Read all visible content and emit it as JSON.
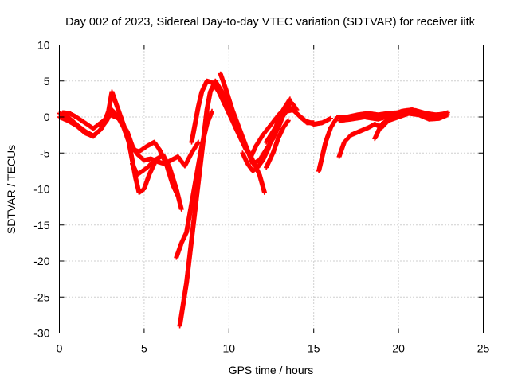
{
  "chart_data": {
    "type": "scatter",
    "title": "Day 002 of 2023, Sidereal Day-to-day VTEC variation (SDTVAR) for receiver iitk",
    "xlabel": "GPS time / hours",
    "ylabel": "SDTVAR / TECUs",
    "xlim": [
      0,
      25
    ],
    "ylim": [
      -30,
      10
    ],
    "xticks": [
      0,
      5,
      10,
      15,
      20,
      25
    ],
    "yticks": [
      -30,
      -25,
      -20,
      -15,
      -10,
      -5,
      0,
      5,
      10
    ],
    "grid": true,
    "marker": "+",
    "color": "#ff0000",
    "series": [
      {
        "name": "s1",
        "points": [
          [
            0,
            0.5
          ],
          [
            0.4,
            0.2
          ],
          [
            0.8,
            -0.6
          ],
          [
            1.2,
            -1.4
          ],
          [
            1.6,
            -2.1
          ],
          [
            2.0,
            -2.6
          ],
          [
            2.4,
            -1.8
          ],
          [
            2.8,
            -0.5
          ],
          [
            3.1,
            1.0
          ],
          [
            3.4,
            0.2
          ],
          [
            3.8,
            -1.5
          ],
          [
            4.1,
            -3.5
          ],
          [
            4.3,
            -6.0
          ],
          [
            4.5,
            -8.5
          ],
          [
            4.7,
            -10.5
          ],
          [
            5.0,
            -10.0
          ],
          [
            5.3,
            -8.0
          ],
          [
            5.7,
            -6.0
          ],
          [
            6.1,
            -5.2
          ],
          [
            6.5,
            -7.0
          ],
          [
            6.9,
            -10.0
          ],
          [
            7.2,
            -12.8
          ]
        ]
      },
      {
        "name": "s2",
        "points": [
          [
            0,
            0.0
          ],
          [
            0.5,
            -0.5
          ],
          [
            1.0,
            -1.2
          ],
          [
            1.5,
            -2.2
          ],
          [
            2.0,
            -2.7
          ],
          [
            2.5,
            -1.6
          ],
          [
            2.9,
            0.8
          ],
          [
            3.1,
            3.5
          ],
          [
            3.4,
            1.5
          ],
          [
            3.7,
            -0.5
          ],
          [
            4.0,
            -2.5
          ],
          [
            4.3,
            -4.5
          ],
          [
            4.7,
            -4.8
          ],
          [
            5.2,
            -4.0
          ],
          [
            5.6,
            -3.5
          ],
          [
            5.9,
            -4.5
          ],
          [
            6.3,
            -6.5
          ],
          [
            6.7,
            -9.5
          ],
          [
            7.0,
            -11.0
          ]
        ]
      },
      {
        "name": "s3",
        "points": [
          [
            0.2,
            0.6
          ],
          [
            0.6,
            0.5
          ],
          [
            1.0,
            0.0
          ],
          [
            1.5,
            -0.8
          ],
          [
            2.0,
            -1.6
          ],
          [
            2.5,
            -0.7
          ],
          [
            3.0,
            0.3
          ],
          [
            3.5,
            -0.2
          ],
          [
            4.0,
            -2.0
          ],
          [
            4.3,
            -4.0
          ],
          [
            4.6,
            -5.2
          ],
          [
            5.0,
            -6.0
          ],
          [
            5.4,
            -5.8
          ],
          [
            5.8,
            -6.2
          ],
          [
            6.2,
            -6.5
          ],
          [
            6.6,
            -6.0
          ],
          [
            7.0,
            -5.5
          ],
          [
            7.4,
            -6.8
          ],
          [
            7.8,
            -5.0
          ],
          [
            8.2,
            -3.5
          ]
        ]
      },
      {
        "name": "s4",
        "points": [
          [
            4.3,
            -6.5
          ],
          [
            4.6,
            -8.0
          ],
          [
            4.9,
            -7.5
          ],
          [
            5.2,
            -7.0
          ],
          [
            5.6,
            -6.0
          ],
          [
            6.0,
            -5.5
          ]
        ]
      },
      {
        "name": "s5",
        "points": [
          [
            6.9,
            -19.5
          ],
          [
            7.2,
            -17.5
          ],
          [
            7.5,
            -16.0
          ],
          [
            7.8,
            -12.0
          ],
          [
            8.1,
            -8.0
          ],
          [
            8.4,
            -4.0
          ],
          [
            8.7,
            -1.0
          ],
          [
            9.0,
            0.8
          ]
        ]
      },
      {
        "name": "s6",
        "points": [
          [
            7.1,
            -29.0
          ],
          [
            7.3,
            -26.0
          ],
          [
            7.5,
            -23.0
          ],
          [
            7.7,
            -19.0
          ],
          [
            7.9,
            -15.0
          ],
          [
            8.1,
            -11.0
          ],
          [
            8.3,
            -7.0
          ],
          [
            8.5,
            -3.0
          ],
          [
            8.7,
            1.0
          ],
          [
            8.9,
            3.5
          ],
          [
            9.2,
            5.0
          ],
          [
            9.6,
            3.5
          ],
          [
            10.0,
            1.0
          ],
          [
            10.4,
            -1.5
          ],
          [
            10.8,
            -3.5
          ],
          [
            11.2,
            -5.0
          ],
          [
            11.5,
            -6.5
          ],
          [
            11.8,
            -8.0
          ],
          [
            12.1,
            -10.5
          ]
        ]
      },
      {
        "name": "s7",
        "points": [
          [
            7.8,
            -3.5
          ],
          [
            8.0,
            -1.0
          ],
          [
            8.2,
            1.5
          ],
          [
            8.4,
            3.5
          ],
          [
            8.7,
            5.0
          ],
          [
            9.0,
            4.8
          ],
          [
            9.4,
            3.5
          ],
          [
            9.8,
            1.5
          ],
          [
            10.2,
            -0.5
          ],
          [
            10.6,
            -2.5
          ],
          [
            11.0,
            -4.5
          ],
          [
            11.3,
            -5.5
          ],
          [
            11.6,
            -4.0
          ],
          [
            12.0,
            -2.5
          ],
          [
            12.5,
            -1.0
          ],
          [
            13.0,
            0.5
          ],
          [
            13.5,
            1.5
          ],
          [
            14.0,
            0.5
          ],
          [
            14.5,
            -0.5
          ],
          [
            15.0,
            -1.0
          ],
          [
            15.5,
            -0.8
          ],
          [
            16.0,
            -0.2
          ]
        ]
      },
      {
        "name": "s8",
        "points": [
          [
            9.5,
            6.0
          ],
          [
            9.8,
            4.0
          ],
          [
            10.2,
            1.0
          ],
          [
            10.6,
            -1.5
          ],
          [
            11.0,
            -4.0
          ],
          [
            11.4,
            -6.5
          ],
          [
            11.8,
            -6.0
          ],
          [
            12.2,
            -4.5
          ],
          [
            12.6,
            -3.0
          ],
          [
            13.0,
            -1.0
          ],
          [
            13.4,
            1.5
          ],
          [
            13.7,
            2.0
          ],
          [
            14.0,
            1.0
          ]
        ]
      },
      {
        "name": "s9",
        "points": [
          [
            10.8,
            -5.0
          ],
          [
            11.1,
            -6.5
          ],
          [
            11.4,
            -7.5
          ],
          [
            11.7,
            -7.0
          ],
          [
            12.0,
            -6.0
          ],
          [
            12.3,
            -4.5
          ],
          [
            12.6,
            -2.5
          ],
          [
            12.9,
            -0.5
          ],
          [
            13.2,
            1.0
          ],
          [
            13.6,
            2.5
          ]
        ]
      },
      {
        "name": "s10",
        "points": [
          [
            12.2,
            -3.5
          ],
          [
            12.6,
            -2.0
          ],
          [
            13.0,
            -0.5
          ],
          [
            13.4,
            0.8
          ],
          [
            13.8,
            1.0
          ],
          [
            14.2,
            0.0
          ],
          [
            14.6,
            -0.8
          ],
          [
            15.0,
            -0.8
          ]
        ]
      },
      {
        "name": "s11",
        "points": [
          [
            12.2,
            -7.0
          ],
          [
            12.6,
            -5.0
          ],
          [
            12.9,
            -3.0
          ],
          [
            13.2,
            -1.5
          ],
          [
            13.5,
            -0.5
          ]
        ]
      },
      {
        "name": "s12",
        "points": [
          [
            15.3,
            -7.5
          ],
          [
            15.5,
            -5.5
          ],
          [
            15.7,
            -3.5
          ],
          [
            16.0,
            -1.5
          ],
          [
            16.4,
            0.0
          ],
          [
            17.0,
            0.0
          ],
          [
            17.6,
            0.3
          ],
          [
            18.2,
            0.5
          ],
          [
            18.8,
            0.3
          ],
          [
            19.4,
            0.5
          ],
          [
            20.0,
            0.6
          ],
          [
            20.5,
            0.8
          ],
          [
            21.0,
            0.9
          ],
          [
            21.6,
            0.5
          ],
          [
            22.2,
            0.3
          ],
          [
            22.8,
            0.4
          ]
        ]
      },
      {
        "name": "s13",
        "points": [
          [
            16.5,
            -5.5
          ],
          [
            16.8,
            -3.5
          ],
          [
            17.2,
            -2.5
          ],
          [
            17.7,
            -2.0
          ],
          [
            18.2,
            -1.5
          ],
          [
            18.6,
            -1.0
          ],
          [
            19.0,
            -1.5
          ],
          [
            19.4,
            -0.5
          ],
          [
            20.0,
            0.0
          ],
          [
            20.6,
            0.5
          ],
          [
            21.2,
            0.3
          ],
          [
            21.8,
            -0.3
          ],
          [
            22.4,
            -0.2
          ],
          [
            22.9,
            0.3
          ]
        ]
      },
      {
        "name": "s14",
        "points": [
          [
            16.5,
            -0.5
          ],
          [
            17.2,
            -0.3
          ],
          [
            18.0,
            0.0
          ],
          [
            18.8,
            -0.3
          ],
          [
            19.5,
            0.2
          ],
          [
            20.2,
            0.8
          ],
          [
            20.8,
            1.0
          ],
          [
            21.4,
            0.6
          ],
          [
            22.0,
            0.2
          ],
          [
            22.6,
            0.4
          ],
          [
            22.9,
            0.6
          ]
        ]
      },
      {
        "name": "s15",
        "points": [
          [
            18.6,
            -3.0
          ],
          [
            18.8,
            -2.0
          ],
          [
            19.0,
            -1.0
          ],
          [
            19.3,
            -0.5
          ],
          [
            19.6,
            0.0
          ]
        ]
      }
    ]
  }
}
